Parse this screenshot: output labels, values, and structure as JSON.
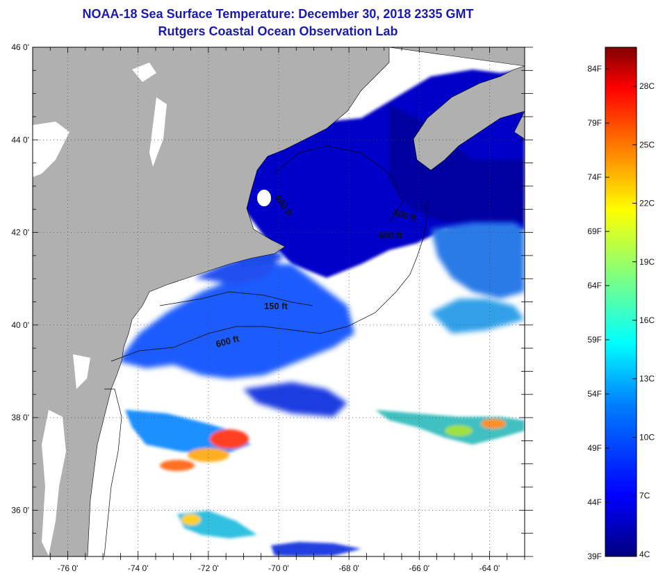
{
  "title": "NOAA-18 Sea Surface Temperature:  December 30, 2018 2335 GMT",
  "subtitle": "Rutgers Coastal Ocean Observation Lab",
  "map": {
    "lon_labels": [
      "-76 0'",
      "-74 0'",
      "-72 0'",
      "-70 0'",
      "-68 0'",
      "-66 0'",
      "-64 0'"
    ],
    "lat_labels": [
      "46 0'",
      "44 0'",
      "42 0'",
      "40 0'",
      "38 0'",
      "36 0'"
    ],
    "lon_values": [
      -76,
      -74,
      -72,
      -70,
      -68,
      -66,
      -64
    ],
    "lat_values": [
      46,
      44,
      42,
      40,
      38,
      36
    ],
    "lon_range": [
      -77,
      -63
    ],
    "lat_range": [
      35,
      46
    ],
    "isobath_labels": [
      "600 ft",
      "600 ft",
      "600 ft",
      "150 ft",
      "600 ft"
    ],
    "colors": {
      "land": "#b0b0b0",
      "cloud": "#ffffff",
      "frame": "#000000"
    }
  },
  "colorbar": {
    "f_labels": [
      "84F",
      "79F",
      "74F",
      "69F",
      "64F",
      "59F",
      "54F",
      "49F",
      "44F",
      "39F"
    ],
    "c_labels": [
      "28C",
      "25C",
      "22C",
      "19C",
      "16C",
      "13C",
      "10C",
      "7C",
      "4C"
    ],
    "stops": [
      "#000080",
      "#0000ff",
      "#0080ff",
      "#00ffff",
      "#80ff80",
      "#ffff00",
      "#ff8000",
      "#ff0000",
      "#800000"
    ]
  }
}
